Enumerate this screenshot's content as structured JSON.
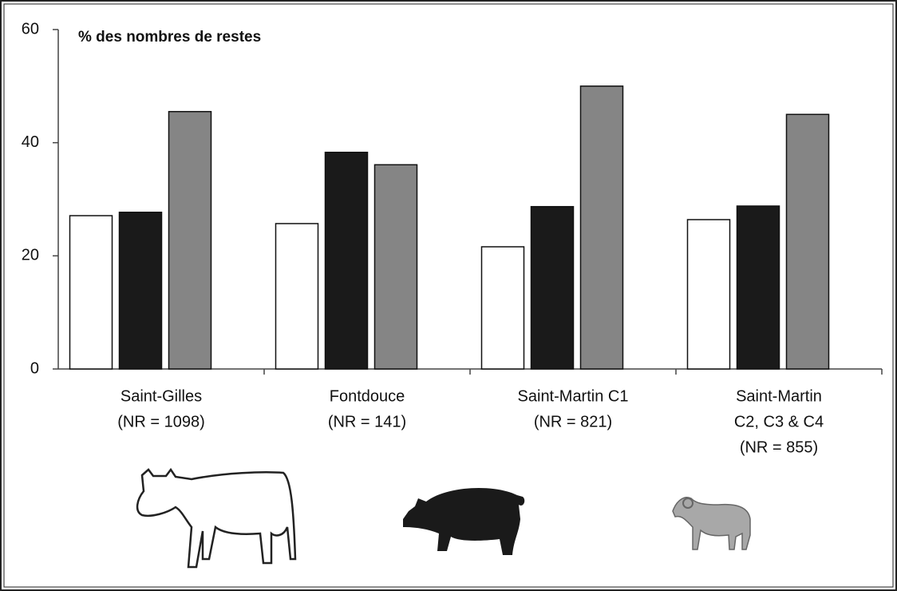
{
  "chart_data": {
    "type": "bar",
    "title": "% des nombres de restes",
    "categories": [
      [
        "Saint-Gilles",
        "(NR = 1098)"
      ],
      [
        "Fontdouce",
        "(NR = 141)"
      ],
      [
        "Saint-Martin C1",
        "(NR = 821)"
      ],
      [
        "Saint-Martin",
        "C2, C3 & C4",
        "(NR = 855)"
      ]
    ],
    "series": [
      {
        "color": "#ffffff",
        "values": [
          27.1,
          25.7,
          21.6,
          26.4
        ]
      },
      {
        "color": "#1a1a1a",
        "values": [
          27.7,
          38.3,
          28.7,
          28.8
        ]
      },
      {
        "color": "#858585",
        "values": [
          45.5,
          36.1,
          50.0,
          45.0
        ]
      }
    ],
    "ylim": [
      0,
      60
    ],
    "yticks": [
      0,
      20,
      40,
      60
    ],
    "grid": false
  }
}
